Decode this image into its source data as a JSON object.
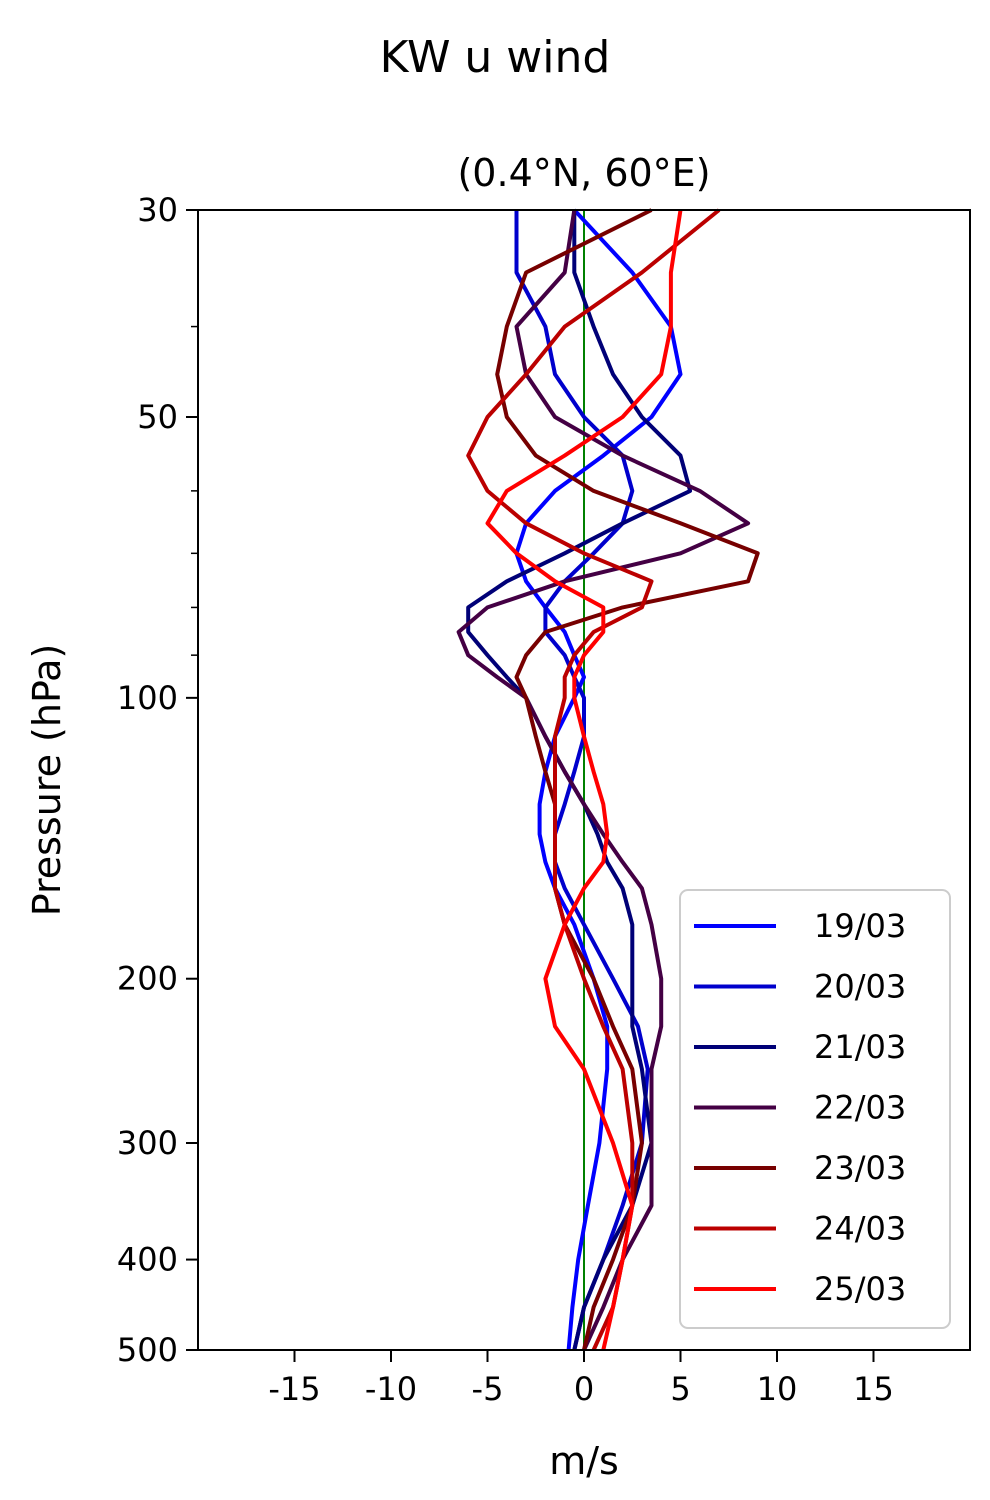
{
  "chart_data": {
    "type": "line",
    "title": "KW u wind",
    "subtitle": "(0.4°N, 60°E)",
    "xlabel": "m/s",
    "ylabel": "Pressure (hPa)",
    "xlim": [
      -20,
      20
    ],
    "ylim": [
      500,
      30
    ],
    "y_scale": "log",
    "x_ticks": [
      -15,
      -10,
      -5,
      0,
      5,
      10,
      15
    ],
    "x_tick_labels": [
      "-15",
      "-10",
      "-5",
      "0",
      "5",
      "10",
      "15"
    ],
    "y_ticks": [
      30,
      50,
      100,
      200,
      300,
      400,
      500
    ],
    "y_tick_labels": [
      "30",
      "50",
      "100",
      "200",
      "300",
      "400",
      "500"
    ],
    "y_minor_ticks": [
      40,
      60,
      70,
      80,
      90
    ],
    "grid": false,
    "legend_position": "lower-right",
    "reference_line": {
      "x": 0,
      "color": "#008000"
    },
    "levels": [
      30,
      35,
      40,
      45,
      50,
      55,
      60,
      65,
      70,
      75,
      80,
      85,
      90,
      95,
      100,
      110,
      120,
      130,
      140,
      150,
      160,
      175,
      200,
      225,
      250,
      300,
      350,
      400,
      450,
      500
    ],
    "series": [
      {
        "name": "19/03",
        "color": "#0000ff",
        "values": [
          -0.5,
          2.5,
          4.5,
          5,
          3.5,
          1,
          -1.5,
          -3,
          -3.5,
          -3,
          -2,
          -1,
          -0.5,
          0,
          -0.5,
          -1.5,
          -2,
          -2.3,
          -2.3,
          -2,
          -1.5,
          -0.5,
          0.5,
          1.2,
          1.2,
          0.8,
          0.2,
          -0.3,
          -0.6,
          -0.8
        ]
      },
      {
        "name": "20/03",
        "color": "#0000cc",
        "values": [
          -3.5,
          -3.5,
          -2,
          -1.5,
          0,
          2,
          2.5,
          2,
          0.5,
          -1,
          -2,
          -2,
          -1,
          -0.5,
          0,
          0,
          -0.5,
          -1,
          -1.5,
          -1.5,
          -1,
          0,
          1.5,
          2.8,
          3.3,
          3,
          2,
          1,
          0,
          -0.5
        ]
      },
      {
        "name": "21/03",
        "color": "#000077",
        "values": [
          -0.5,
          -0.5,
          0.5,
          1.5,
          3,
          5,
          5.5,
          2,
          -1,
          -4,
          -6,
          -6,
          -5,
          -4,
          -3,
          -2,
          -1,
          0,
          0.7,
          1.2,
          2,
          2.5,
          2.5,
          2.5,
          3,
          3.5,
          2.5,
          1,
          0,
          -0.5
        ]
      },
      {
        "name": "22/03",
        "color": "#440044",
        "values": [
          -0.5,
          -1,
          -3.5,
          -3,
          -1.5,
          2,
          6,
          8.5,
          5,
          -1,
          -5,
          -6.5,
          -6,
          -4.5,
          -3,
          -2,
          -1,
          0,
          1,
          2,
          3,
          3.5,
          4,
          4,
          3.5,
          3.5,
          3.5,
          2,
          1,
          0
        ]
      },
      {
        "name": "23/03",
        "color": "#770000",
        "values": [
          3.5,
          -3,
          -4,
          -4.5,
          -4,
          -2.5,
          0.5,
          5,
          9,
          8.5,
          2,
          -2,
          -3,
          -3.5,
          -3,
          -2.5,
          -2,
          -1.5,
          -1.5,
          -1.5,
          -1.5,
          -1,
          0.5,
          1.5,
          2.5,
          3,
          2.5,
          1.5,
          0.5,
          0
        ]
      },
      {
        "name": "24/03",
        "color": "#bb0000",
        "values": [
          7,
          3,
          -1,
          -3,
          -5,
          -6,
          -5,
          -3,
          0,
          3.5,
          3,
          0.5,
          -0.5,
          -1,
          -1,
          -1.5,
          -1.5,
          -1.5,
          -1.5,
          -1.5,
          -1.5,
          -1,
          0,
          1,
          2,
          2.5,
          2.5,
          2,
          1.5,
          0.5
        ]
      },
      {
        "name": "25/03",
        "color": "#ff0000",
        "values": [
          5,
          4.5,
          4.5,
          4,
          2,
          -1,
          -4,
          -5,
          -3.5,
          -1.5,
          1,
          1,
          0,
          -0.5,
          -0.5,
          0,
          0.5,
          1,
          1.2,
          1,
          0,
          -1,
          -2,
          -1.5,
          0,
          1.5,
          2.5,
          2,
          1.5,
          1
        ]
      }
    ]
  }
}
